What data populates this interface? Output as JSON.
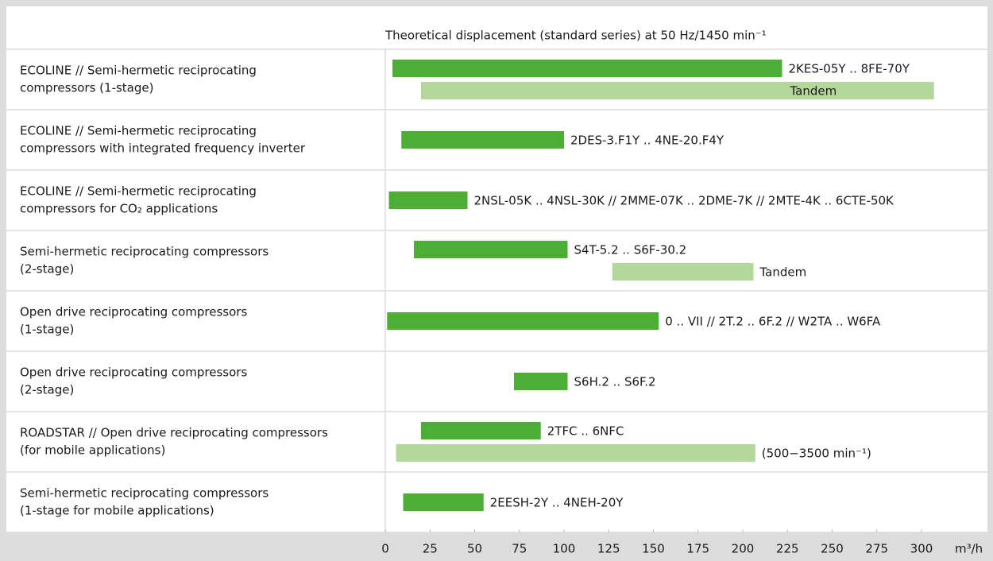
{
  "chart_data": {
    "type": "range_bar",
    "title": "Theoretical displacement (standard series) at 50 Hz/1450 min⁻¹",
    "x_unit": "m³/h",
    "xlim": [
      0,
      300
    ],
    "xticks": [
      0,
      25,
      50,
      75,
      100,
      125,
      150,
      175,
      200,
      225,
      250,
      275,
      300
    ],
    "categories": [
      [
        "ECOLINE // Semi-hermetic reciprocating",
        "compressors (1-stage)"
      ],
      [
        "ECOLINE // Semi-hermetic reciprocating",
        "compressors with integrated frequency inverter"
      ],
      [
        "ECOLINE // Semi-hermetic reciprocating",
        "compressors for CO₂ applications"
      ],
      [
        "Semi-hermetic reciprocating compressors",
        "(2-stage)"
      ],
      [
        "Open drive reciprocating compressors",
        "(1-stage)"
      ],
      [
        "Open drive reciprocating compressors",
        "(2-stage)"
      ],
      [
        "ROADSTAR // Open drive reciprocating compressors",
        "(for mobile applications)"
      ],
      [
        "Semi-hermetic reciprocating compressors",
        "(1-stage for mobile applications)"
      ]
    ],
    "bars": [
      {
        "category": 0,
        "start": 4,
        "end": 222,
        "label": "2KES-05Y .. 8FE-70Y",
        "color": "#4cae35"
      },
      {
        "category": 0,
        "start": 20,
        "end": 307,
        "label": "Tandem",
        "color": "#b4d79c"
      },
      {
        "category": 1,
        "start": 9,
        "end": 100,
        "label": "2DES-3.F1Y .. 4NE-20.F4Y",
        "color": "#4cae35"
      },
      {
        "category": 2,
        "start": 2,
        "end": 46,
        "label": "2NSL-05K .. 4NSL-30K // 2MME-07K .. 2DME-7K // 2MTE-4K .. 6CTE-50K",
        "color": "#4cae35"
      },
      {
        "category": 3,
        "start": 16,
        "end": 102,
        "label": "S4T-5.2 .. S6F-30.2",
        "color": "#4cae35"
      },
      {
        "category": 3,
        "start": 127,
        "end": 206,
        "label": "Tandem",
        "color": "#b4d79c"
      },
      {
        "category": 4,
        "start": 1,
        "end": 153,
        "label": "0 .. VII // 2T.2 .. 6F.2 // W2TA .. W6FA",
        "color": "#4cae35"
      },
      {
        "category": 5,
        "start": 72,
        "end": 102,
        "label": "S6H.2 .. S6F.2",
        "color": "#4cae35"
      },
      {
        "category": 6,
        "start": 20,
        "end": 87,
        "label": "2TFC .. 6NFC",
        "color": "#4cae35"
      },
      {
        "category": 6,
        "start": 6,
        "end": 207,
        "label": "(500−3500 min⁻¹)",
        "color": "#b4d79c"
      },
      {
        "category": 7,
        "start": 10,
        "end": 55,
        "label": "2EESH-2Y .. 4NEH-20Y",
        "color": "#4cae35"
      }
    ]
  }
}
